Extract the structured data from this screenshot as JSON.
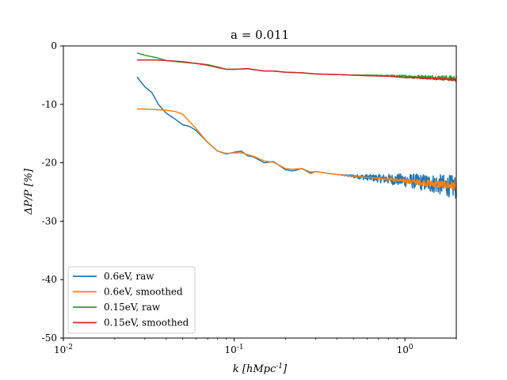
{
  "chart_data": {
    "type": "line",
    "title": "a = 0.011",
    "xlabel": "k [hMpc^-1]",
    "ylabel": "ΔP/P [%]",
    "xscale": "log",
    "xlim": [
      0.01,
      2.0
    ],
    "ylim": [
      -50,
      0
    ],
    "xticks": [
      {
        "value": 0.01,
        "base": "10",
        "exp": "-2"
      },
      {
        "value": 0.1,
        "base": "10",
        "exp": "-1"
      },
      {
        "value": 1,
        "base": "10",
        "exp": "0"
      }
    ],
    "yticks": [
      {
        "value": 0,
        "label": "0"
      },
      {
        "value": -10,
        "label": "-10"
      },
      {
        "value": -20,
        "label": "-20"
      },
      {
        "value": -30,
        "label": "-30"
      },
      {
        "value": -40,
        "label": "-40"
      },
      {
        "value": -50,
        "label": "-50"
      }
    ],
    "grid": false,
    "legend_position": "bottom-left",
    "series": [
      {
        "name": "0.6eV, raw",
        "color": "#1f77b4",
        "noise_from_k": 0.4,
        "noise_amp_end": 2.0,
        "x": [
          0.027,
          0.03,
          0.033,
          0.036,
          0.04,
          0.045,
          0.05,
          0.055,
          0.06,
          0.07,
          0.08,
          0.09,
          0.1,
          0.11,
          0.12,
          0.13,
          0.15,
          0.17,
          0.2,
          0.22,
          0.25,
          0.28,
          0.3,
          0.35,
          0.4,
          0.5,
          0.6,
          0.8,
          1.0,
          1.5,
          2.0
        ],
        "y": [
          -5.3,
          -7.0,
          -8.0,
          -10.0,
          -11.5,
          -12.5,
          -13.5,
          -13.8,
          -14.5,
          -16.5,
          -18.0,
          -18.5,
          -18.2,
          -18.0,
          -18.8,
          -19.0,
          -20.0,
          -19.8,
          -21.2,
          -21.4,
          -21.0,
          -21.8,
          -21.5,
          -21.8,
          -22.0,
          -22.3,
          -22.5,
          -22.8,
          -23.0,
          -23.6,
          -24.2
        ]
      },
      {
        "name": "0.6eV, smoothed",
        "color": "#ff7f0e",
        "noise_from_k": 0.6,
        "noise_amp_end": 0.8,
        "x": [
          0.027,
          0.03,
          0.035,
          0.04,
          0.045,
          0.05,
          0.055,
          0.06,
          0.07,
          0.08,
          0.09,
          0.1,
          0.11,
          0.12,
          0.13,
          0.15,
          0.17,
          0.2,
          0.22,
          0.25,
          0.28,
          0.3,
          0.35,
          0.4,
          0.5,
          0.6,
          0.8,
          1.0,
          1.5,
          2.0
        ],
        "y": [
          -10.8,
          -10.8,
          -10.9,
          -11.0,
          -11.2,
          -11.7,
          -13.0,
          -14.2,
          -16.5,
          -18.0,
          -18.4,
          -18.3,
          -18.3,
          -18.6,
          -18.9,
          -19.7,
          -19.9,
          -21.0,
          -21.1,
          -21.0,
          -21.6,
          -21.5,
          -21.8,
          -22.0,
          -22.3,
          -22.5,
          -22.8,
          -23.1,
          -23.6,
          -24.0
        ]
      },
      {
        "name": "0.15eV, raw",
        "color": "#2ca02c",
        "noise_from_k": 0.6,
        "noise_amp_end": 0.5,
        "x": [
          0.027,
          0.03,
          0.035,
          0.04,
          0.05,
          0.06,
          0.07,
          0.08,
          0.09,
          0.1,
          0.12,
          0.15,
          0.17,
          0.2,
          0.25,
          0.3,
          0.4,
          0.5,
          0.6,
          0.8,
          1.0,
          1.5,
          2.0
        ],
        "y": [
          -1.2,
          -1.6,
          -2.0,
          -2.5,
          -2.8,
          -3.0,
          -3.2,
          -3.6,
          -4.0,
          -4.0,
          -3.9,
          -4.3,
          -4.3,
          -4.5,
          -4.6,
          -4.8,
          -4.9,
          -5.0,
          -5.0,
          -5.1,
          -5.2,
          -5.4,
          -5.6
        ]
      },
      {
        "name": "0.15eV, smoothed",
        "color": "#d62728",
        "noise_from_k": 0.8,
        "noise_amp_end": 0.2,
        "x": [
          0.027,
          0.03,
          0.035,
          0.04,
          0.05,
          0.06,
          0.07,
          0.08,
          0.09,
          0.1,
          0.12,
          0.15,
          0.17,
          0.2,
          0.25,
          0.3,
          0.4,
          0.5,
          0.6,
          0.8,
          1.0,
          1.5,
          2.0
        ],
        "y": [
          -2.4,
          -2.4,
          -2.4,
          -2.5,
          -2.7,
          -3.0,
          -3.3,
          -3.7,
          -4.0,
          -4.0,
          -3.9,
          -4.3,
          -4.3,
          -4.5,
          -4.6,
          -4.8,
          -4.9,
          -5.0,
          -5.1,
          -5.2,
          -5.4,
          -5.6,
          -5.8
        ]
      }
    ]
  }
}
